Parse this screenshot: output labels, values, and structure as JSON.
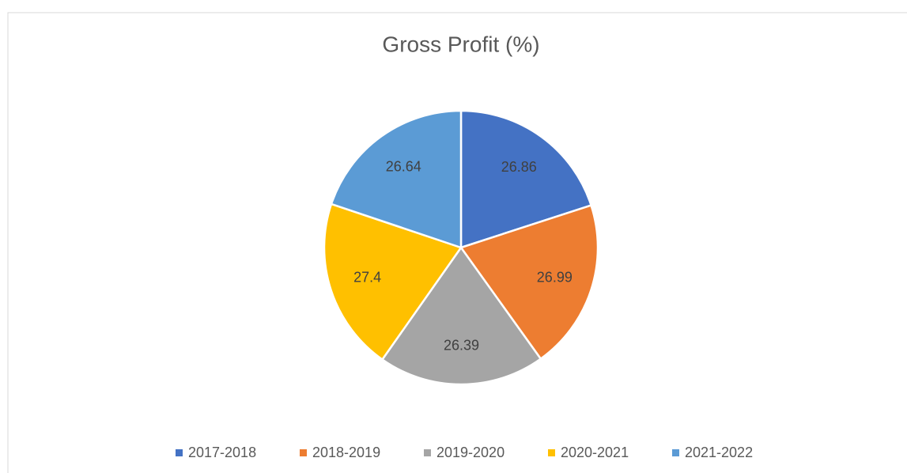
{
  "chart_data": {
    "type": "pie",
    "title": "Gross Profit (%)",
    "categories": [
      "2017-2018",
      "2018-2019",
      "2019-2020",
      "2020-2021",
      "2021-2022"
    ],
    "values": [
      26.86,
      26.99,
      26.39,
      27.4,
      26.64
    ],
    "colors": [
      "#4472c4",
      "#ed7d31",
      "#a5a5a5",
      "#ffc000",
      "#5b9bd5"
    ],
    "legend": "bottom"
  }
}
